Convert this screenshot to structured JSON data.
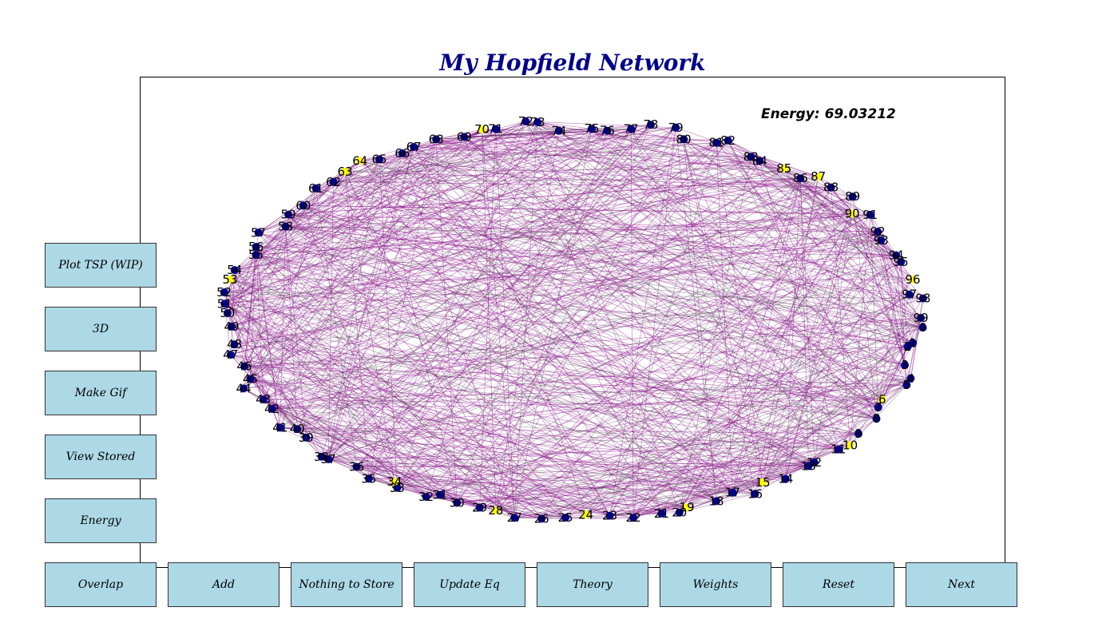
{
  "title": "My Hopfield Network",
  "energy_text": "Energy: 69.03212",
  "colors": {
    "title": "#00008b",
    "button": "#add8e6",
    "edge": "#800080",
    "node_on": "#ffff00",
    "node_off": "#00008b"
  },
  "side_buttons": [
    "Plot TSP (WIP)",
    "3D",
    "Make Gif",
    "View Stored",
    "Energy"
  ],
  "bottom_buttons": [
    "Overlap",
    "Add",
    "Nothing to Store",
    "Update Eq",
    "Theory",
    "Weights",
    "Reset",
    "Next"
  ],
  "graph": {
    "node_count": 100,
    "node_labels": [
      "0",
      "1",
      "2",
      "3",
      "4",
      "5",
      "6",
      "7",
      "8",
      "9",
      "10",
      "11",
      "12",
      "13",
      "14",
      "15",
      "16",
      "17",
      "18",
      "19",
      "20",
      "21",
      "22",
      "23",
      "24",
      "25",
      "26",
      "27",
      "28",
      "29",
      "30",
      "31",
      "32",
      "33",
      "34",
      "35",
      "36",
      "37",
      "38",
      "39",
      "40",
      "41",
      "42",
      "43",
      "44",
      "45",
      "46",
      "47",
      "48",
      "49",
      "50",
      "51",
      "52",
      "53",
      "54",
      "55",
      "56",
      "57",
      "58",
      "59",
      "60",
      "61",
      "62",
      "63",
      "64",
      "65",
      "66",
      "67",
      "68",
      "69",
      "70",
      "71",
      "72",
      "73",
      "74",
      "75",
      "76",
      "77",
      "78",
      "79",
      "80",
      "81",
      "82",
      "83",
      "84",
      "85",
      "86",
      "87",
      "88",
      "89",
      "90",
      "91",
      "92",
      "93",
      "94",
      "95",
      "96",
      "97",
      "98",
      "99"
    ]
  }
}
